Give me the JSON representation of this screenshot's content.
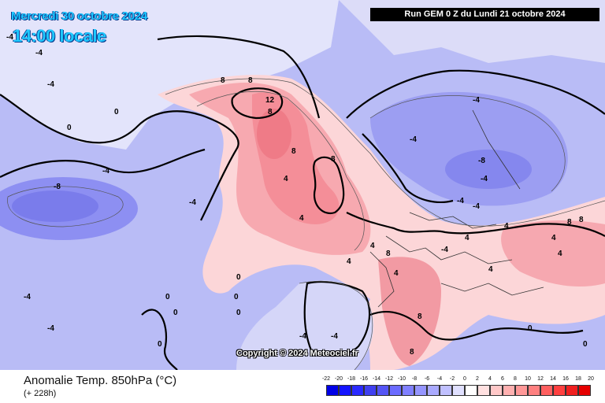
{
  "header": {
    "valid_date": "Mercredi 30 octobre 2024",
    "valid_time": "14:00 locale",
    "run_info": "Run GEM 0 Z du Lundi 21 octobre 2024"
  },
  "footer": {
    "field_title": "Anomalie Temp. 850hPa (°C)",
    "lead_time": "(+ 228h)",
    "copyright": "Copyright © 2024 Meteociel.fr"
  },
  "legend": {
    "ticks": [
      "-22",
      "-20",
      "-18",
      "-16",
      "-14",
      "-12",
      "-10",
      "-8",
      "-6",
      "-4",
      "-2",
      "0",
      "2",
      "4",
      "6",
      "8",
      "10",
      "12",
      "14",
      "16",
      "18",
      "20"
    ],
    "colors": [
      "#0000e6",
      "#1414ff",
      "#2a2aff",
      "#4040f0",
      "#5555f5",
      "#6b6bff",
      "#8080ff",
      "#9595ff",
      "#aaaaff",
      "#c0c0ff",
      "#e0e0ff",
      "#ffffff",
      "#ffe0e0",
      "#ffc8c8",
      "#ffb0b0",
      "#ff9898",
      "#ff8080",
      "#ff6060",
      "#ff4040",
      "#f02020",
      "#e60000"
    ]
  },
  "map": {
    "labels": [
      {
        "t": "-4"
      },
      {
        "t": "-4"
      },
      {
        "t": "-4"
      },
      {
        "t": "-4"
      },
      {
        "t": "-4"
      },
      {
        "t": "-8"
      },
      {
        "t": "-4"
      },
      {
        "t": "-4"
      },
      {
        "t": "0"
      },
      {
        "t": "0"
      },
      {
        "t": "0"
      },
      {
        "t": "0"
      },
      {
        "t": "0"
      },
      {
        "t": "0"
      },
      {
        "t": "0"
      },
      {
        "t": "0"
      },
      {
        "t": "4"
      },
      {
        "t": "4"
      },
      {
        "t": "4"
      },
      {
        "t": "4"
      },
      {
        "t": "4"
      },
      {
        "t": "4"
      },
      {
        "t": "8"
      },
      {
        "t": "8"
      },
      {
        "t": "8"
      },
      {
        "t": "8"
      },
      {
        "t": "8"
      },
      {
        "t": "8"
      },
      {
        "t": "12"
      },
      {
        "t": "-4"
      },
      {
        "t": "-4"
      },
      {
        "t": "-8"
      },
      {
        "t": "-4"
      },
      {
        "t": "-4"
      },
      {
        "t": "4"
      },
      {
        "t": "8"
      },
      {
        "t": "8"
      },
      {
        "t": "4"
      },
      {
        "t": "4"
      },
      {
        "t": "8"
      },
      {
        "t": "8"
      },
      {
        "t": "4"
      },
      {
        "t": "-4"
      },
      {
        "t": "-4"
      },
      {
        "t": "0"
      },
      {
        "t": "0"
      },
      {
        "t": "-4"
      },
      {
        "t": "-4"
      }
    ]
  }
}
